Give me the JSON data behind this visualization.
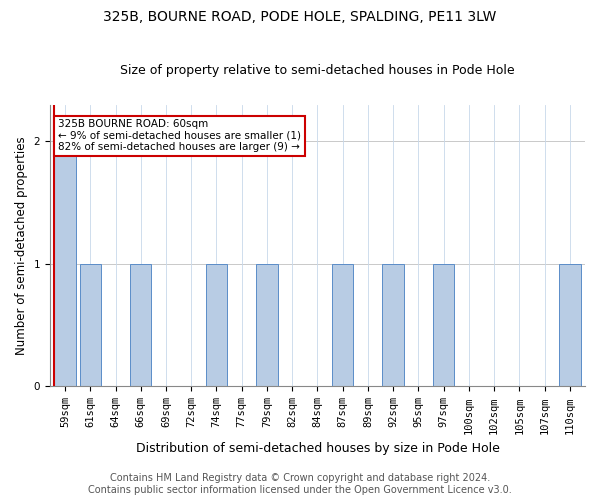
{
  "title": "325B, BOURNE ROAD, PODE HOLE, SPALDING, PE11 3LW",
  "subtitle": "Size of property relative to semi-detached houses in Pode Hole",
  "xlabel": "Distribution of semi-detached houses by size in Pode Hole",
  "ylabel": "Number of semi-detached properties",
  "categories": [
    "59sqm",
    "61sqm",
    "64sqm",
    "66sqm",
    "69sqm",
    "72sqm",
    "74sqm",
    "77sqm",
    "79sqm",
    "82sqm",
    "84sqm",
    "87sqm",
    "89sqm",
    "92sqm",
    "95sqm",
    "97sqm",
    "100sqm",
    "102sqm",
    "105sqm",
    "107sqm",
    "110sqm"
  ],
  "values": [
    2,
    1,
    0,
    1,
    0,
    0,
    1,
    0,
    1,
    0,
    0,
    1,
    0,
    1,
    0,
    1,
    0,
    0,
    0,
    0,
    1
  ],
  "bar_color": "#b8cce4",
  "bar_edge_color": "#5b8dc8",
  "property_bar_index": 0,
  "property_label": "325B BOURNE ROAD: 60sqm",
  "annotation_line1": "← 9% of semi-detached houses are smaller (1)",
  "annotation_line2": "82% of semi-detached houses are larger (9) →",
  "annotation_box_color": "#ffffff",
  "annotation_box_edge": "#cc0000",
  "property_line_color": "#cc0000",
  "ylim": [
    0,
    2.3
  ],
  "yticks": [
    0,
    1,
    2
  ],
  "footer1": "Contains HM Land Registry data © Crown copyright and database right 2024.",
  "footer2": "Contains public sector information licensed under the Open Government Licence v3.0.",
  "title_fontsize": 10,
  "subtitle_fontsize": 9,
  "xlabel_fontsize": 9,
  "ylabel_fontsize": 8.5,
  "tick_fontsize": 7.5,
  "footer_fontsize": 7
}
